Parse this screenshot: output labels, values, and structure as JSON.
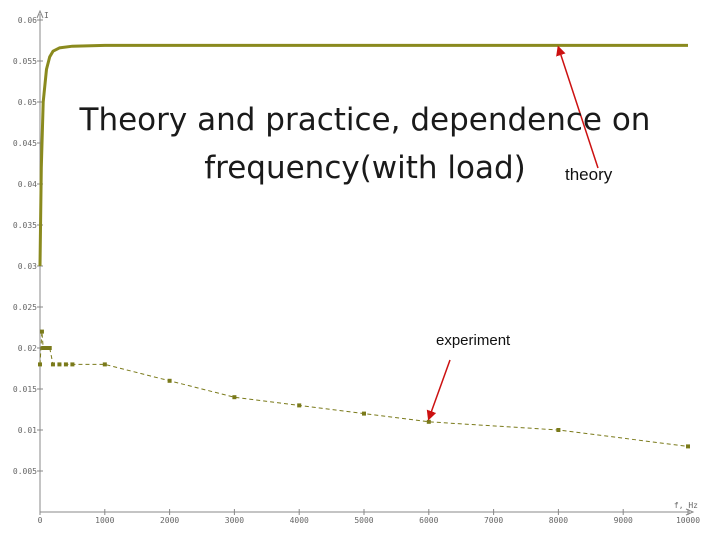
{
  "chart_data": {
    "type": "line",
    "title_lines": [
      "Theory and practice, dependence on",
      "frequency(with load)"
    ],
    "xlabel": "f, Hz",
    "ylabel": "I",
    "xlim": [
      0,
      10000
    ],
    "ylim": [
      0,
      0.06
    ],
    "x_ticks": [
      0,
      1000,
      2000,
      3000,
      4000,
      5000,
      6000,
      7000,
      8000,
      9000,
      10000
    ],
    "x_tick_labels": [
      "0",
      "1000",
      "2000",
      "3000",
      "4000",
      "5000",
      "6000",
      "7000",
      "8000",
      "9000",
      "10000"
    ],
    "y_ticks": [
      0.005,
      0.01,
      0.015,
      0.02,
      0.025,
      0.03,
      0.035,
      0.04,
      0.045,
      0.05,
      0.055,
      0.06
    ],
    "y_tick_labels": [
      "0.005",
      "0.01",
      "0.015",
      "0.02",
      "0.025",
      "0.03",
      "0.035",
      "0.04",
      "0.045",
      "0.05",
      "0.055",
      "0.06"
    ],
    "grid": false,
    "series": [
      {
        "name": "theory",
        "style": "solid-thick",
        "color": "#8a8a1e",
        "x": [
          0,
          20,
          50,
          100,
          150,
          200,
          300,
          500,
          1000,
          2000,
          5000,
          10000
        ],
        "y": [
          0.03,
          0.042,
          0.05,
          0.054,
          0.0555,
          0.0562,
          0.0566,
          0.0568,
          0.0569,
          0.0569,
          0.0569,
          0.0569
        ]
      },
      {
        "name": "experiment",
        "style": "dashed-markers",
        "color": "#7a7a1a",
        "x": [
          0,
          30,
          50,
          100,
          150,
          200,
          300,
          400,
          500,
          1000,
          2000,
          3000,
          4000,
          5000,
          6000,
          8000,
          10000
        ],
        "y": [
          0.018,
          0.022,
          0.02,
          0.02,
          0.02,
          0.018,
          0.018,
          0.018,
          0.018,
          0.018,
          0.016,
          0.014,
          0.013,
          0.012,
          0.011,
          0.01,
          0.008
        ]
      }
    ],
    "annotations": [
      {
        "text": "theory",
        "target_x": 8000,
        "target_y": 0.0569
      },
      {
        "text": "experiment",
        "target_x": 6000,
        "target_y": 0.011
      }
    ],
    "colors": {
      "arrow": "#cc1111",
      "axis": "#888888"
    }
  }
}
